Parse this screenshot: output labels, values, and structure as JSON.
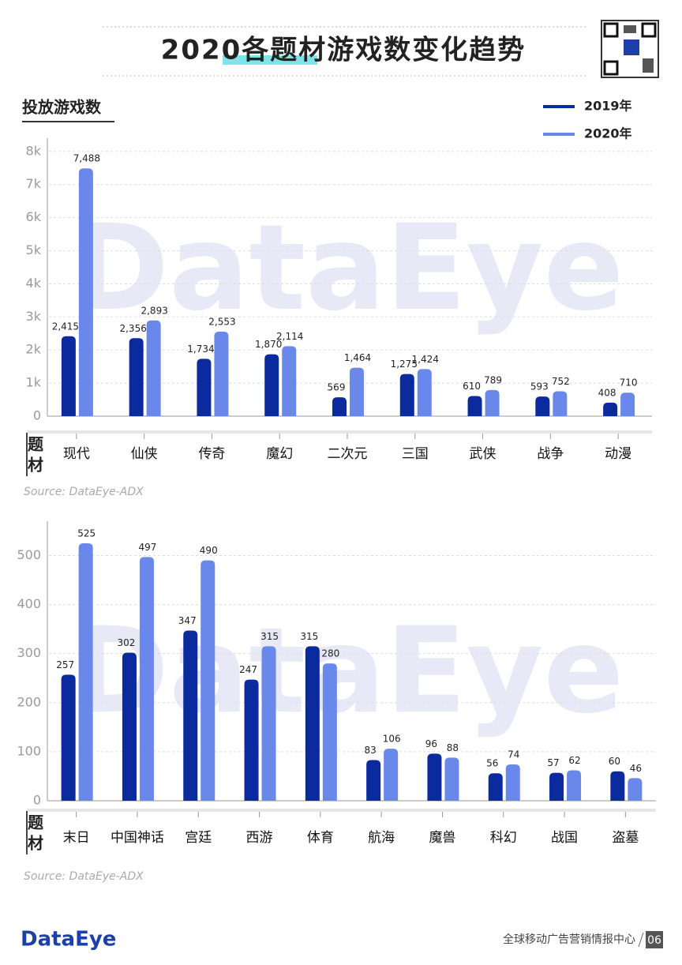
{
  "header": {
    "title": "2020各题材游戏数变化趋势"
  },
  "watermark": "DataEye",
  "chart_data": [
    {
      "type": "bar",
      "title": "投放游戏数",
      "x_label": "题材",
      "source": "Source: DataEye-ADX",
      "categories": [
        "现代",
        "仙侠",
        "传奇",
        "魔幻",
        "二次元",
        "三国",
        "武侠",
        "战争",
        "动漫"
      ],
      "series": [
        {
          "name": "2019年",
          "color": "#0b2a9e",
          "values": [
            2415,
            2356,
            1734,
            1870,
            569,
            1275,
            610,
            593,
            408
          ],
          "value_labels": [
            "2,415",
            "2,356",
            "1,734",
            "1,870",
            "569",
            "1,275",
            "610",
            "593",
            "408"
          ]
        },
        {
          "name": "2020年",
          "color": "#6a88ea",
          "values": [
            7488,
            2893,
            2553,
            2114,
            1464,
            1424,
            789,
            752,
            710
          ],
          "value_labels": [
            "7,488",
            "2,893",
            "2,553",
            "2,114",
            "1,464",
            "1,424",
            "789",
            "752",
            "710"
          ]
        }
      ],
      "ylim": [
        0,
        8400
      ],
      "yticks": [
        0,
        {
          "value": 1000,
          "label": "1k"
        },
        {
          "value": 2000,
          "label": "2k"
        },
        {
          "value": 3000,
          "label": "3k"
        },
        {
          "value": 4000,
          "label": "4k"
        },
        {
          "value": 5000,
          "label": "5k"
        },
        {
          "value": 6000,
          "label": "6k"
        },
        {
          "value": 7000,
          "label": "7k"
        },
        {
          "value": 8000,
          "label": "8k"
        }
      ],
      "grid": true,
      "legend": "top-right"
    },
    {
      "type": "bar",
      "x_label": "题材",
      "source": "Source: DataEye-ADX",
      "categories": [
        "末日",
        "中国神话",
        "宫廷",
        "西游",
        "体育",
        "航海",
        "魔兽",
        "科幻",
        "战国",
        "盗墓"
      ],
      "series": [
        {
          "color": "#0b2a9e",
          "values": [
            257,
            302,
            347,
            247,
            315,
            83,
            96,
            56,
            57,
            60
          ]
        },
        {
          "color": "#6a88ea",
          "values": [
            525,
            497,
            490,
            315,
            280,
            106,
            88,
            74,
            62,
            46
          ]
        }
      ],
      "ylim": [
        0,
        570
      ],
      "yticks": [
        0,
        100,
        200,
        300,
        400,
        500
      ],
      "grid": true
    }
  ],
  "footer": {
    "logo": "DataEye",
    "tagline": "全球移动广告营销情报中心",
    "page": "06"
  }
}
